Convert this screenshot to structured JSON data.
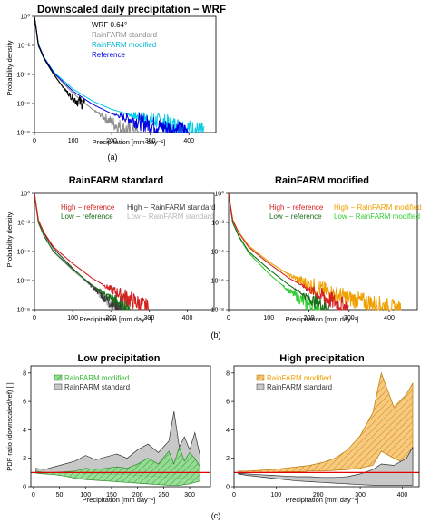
{
  "colors": {
    "wrf": "#000000",
    "standard": "#8c8c8c",
    "modified": "#00c8e6",
    "reference": "#0000e0",
    "high_ref": "#d42020",
    "low_ref": "#1a6e1a",
    "high_std": "#3a3a3a",
    "low_std": "#b8b8b8",
    "high_mod": "#f0a000",
    "low_mod": "#33cc33",
    "ratio_line": "#e00000",
    "low_fill": "#8ede8e",
    "high_fill": "#f8c470",
    "std_fill": "#c8c8c8"
  },
  "panel_a": {
    "title": "Downscaled daily precipitation − WRF",
    "xlabel": "Precipitation [mm day⁻¹]",
    "ylabel": "Probability density",
    "caption": "(a)",
    "legend": [
      "WRF 0.64°",
      "RainFARM standard",
      "RainFARM modified",
      "Reference"
    ]
  },
  "panel_b": {
    "caption": "(b)",
    "left": {
      "title": "RainFARM standard",
      "xlabel": "Precipitation [mm day⁻¹]",
      "ylabel": "Probability density",
      "legend": [
        "High − reference",
        "Low − reference",
        "High − RainFARM standard",
        "Low − RainFARM standard"
      ]
    },
    "right": {
      "title": "RainFARM modified",
      "xlabel": "Precipitation [mm day⁻¹]",
      "legend": [
        "High − reference",
        "Low − reference",
        "High − RainFARM modified",
        "Low − RainFARM modified"
      ]
    }
  },
  "panel_c": {
    "caption": "(c)",
    "left": {
      "title": "Low precipitation",
      "xlabel": "Precipitation [mm day⁻¹]",
      "ylabel": "PDF ratio (downscaled/ref) [ ]",
      "legend": [
        "RainFARM modified",
        "RainFARM standard"
      ]
    },
    "right": {
      "title": "High precipitation",
      "xlabel": "Precipitation [mm day⁻¹]",
      "legend": [
        "RainFARM modified",
        "RainFARM standard"
      ]
    }
  },
  "chart_data": [
    {
      "type": "line",
      "title": "Downscaled daily precipitation − WRF",
      "xlabel": "Precipitation [mm day⁻¹]",
      "ylabel": "Probability density",
      "y_scale": "log",
      "xlim": [
        0,
        470
      ],
      "ylim": [
        1e-08,
        1
      ],
      "x_ticks": [
        0,
        100,
        200,
        300,
        400
      ],
      "y_ticks": [
        "10⁰",
        "10⁻²",
        "10⁻⁴",
        "10⁻⁶",
        "10⁻⁸"
      ],
      "legend_position": "top-left",
      "series": [
        {
          "name": "WRF 0.64°",
          "x": [
            0,
            10,
            25,
            50,
            75,
            95,
            110,
            120,
            130
          ],
          "y": [
            1.0,
            0.01,
            0.0012,
            0.0001,
            1.2e-05,
            3e-06,
            1.5e-06,
            1.2e-06,
            1e-06
          ]
        },
        {
          "name": "RainFARM standard",
          "x": [
            0,
            10,
            25,
            50,
            100,
            150,
            200,
            225,
            250,
            270
          ],
          "y": [
            1.0,
            0.012,
            0.0013,
            0.00012,
            5e-06,
            4e-07,
            5e-08,
            2e-08,
            1.2e-08,
            1e-08
          ]
        },
        {
          "name": "RainFARM modified",
          "x": [
            0,
            10,
            25,
            50,
            100,
            150,
            200,
            250,
            300,
            350,
            400,
            440
          ],
          "y": [
            1.0,
            0.013,
            0.0015,
            0.00015,
            1e-05,
            1.5e-06,
            4e-07,
            1.6e-07,
            8e-08,
            4e-08,
            2e-08,
            1.2e-08
          ]
        },
        {
          "name": "Reference",
          "x": [
            0,
            10,
            25,
            50,
            100,
            150,
            200,
            250,
            300,
            350,
            400
          ],
          "y": [
            1.0,
            0.012,
            0.0014,
            0.00013,
            7e-06,
            9e-07,
            2e-07,
            8e-08,
            3.5e-08,
            2e-08,
            1.2e-08
          ]
        }
      ]
    },
    {
      "type": "line",
      "title": "RainFARM standard",
      "xlabel": "Precipitation [mm day⁻¹]",
      "ylabel": "Probability density",
      "y_scale": "log",
      "xlim": [
        0,
        470
      ],
      "ylim": [
        1e-08,
        1
      ],
      "x_ticks": [
        0,
        100,
        200,
        300,
        400
      ],
      "y_ticks": [
        "10⁰",
        "10⁻²",
        "10⁻⁴",
        "10⁻⁶",
        "10⁻⁸"
      ],
      "legend_position": "top",
      "series": [
        {
          "name": "High − reference",
          "x": [
            0,
            10,
            25,
            50,
            100,
            150,
            200,
            250,
            300
          ],
          "y": [
            1.0,
            0.015,
            0.002,
            0.0002,
            1.5e-05,
            1.5e-06,
            2.5e-07,
            5e-08,
            1.2e-08
          ]
        },
        {
          "name": "Low − reference",
          "x": [
            0,
            10,
            25,
            50,
            100,
            150,
            200,
            250
          ],
          "y": [
            1.0,
            0.01,
            0.0012,
            0.0001,
            6e-06,
            5e-07,
            6e-08,
            1.2e-08
          ]
        },
        {
          "name": "High − RainFARM standard",
          "x": [
            0,
            10,
            25,
            50,
            100,
            150,
            200,
            230
          ],
          "y": [
            1.0,
            0.014,
            0.0017,
            0.00016,
            7e-06,
            4e-07,
            3e-08,
            1e-08
          ]
        },
        {
          "name": "Low − RainFARM standard",
          "x": [
            0,
            10,
            25,
            50,
            100,
            150,
            200,
            230
          ],
          "y": [
            1.0,
            0.01,
            0.0011,
            9e-05,
            5e-06,
            4e-07,
            3e-08,
            1e-08
          ]
        }
      ]
    },
    {
      "type": "line",
      "title": "RainFARM modified",
      "xlabel": "Precipitation [mm day⁻¹]",
      "y_scale": "log",
      "xlim": [
        0,
        470
      ],
      "ylim": [
        1e-08,
        1
      ],
      "x_ticks": [
        0,
        100,
        200,
        300,
        400
      ],
      "y_ticks": [
        "10⁰",
        "10⁻²",
        "10⁻⁴",
        "10⁻⁶",
        "10⁻⁸"
      ],
      "legend_position": "top",
      "series": [
        {
          "name": "High − reference",
          "x": [
            0,
            10,
            25,
            50,
            100,
            150,
            200,
            250,
            300
          ],
          "y": [
            1.0,
            0.015,
            0.002,
            0.0002,
            1.5e-05,
            1.5e-06,
            2.5e-07,
            5e-08,
            1.2e-08
          ]
        },
        {
          "name": "Low − reference",
          "x": [
            0,
            10,
            25,
            50,
            100,
            150,
            200,
            250
          ],
          "y": [
            1.0,
            0.01,
            0.0012,
            0.0001,
            6e-06,
            5e-07,
            6e-08,
            1.2e-08
          ]
        },
        {
          "name": "High − RainFARM modified",
          "x": [
            0,
            10,
            25,
            50,
            100,
            150,
            200,
            250,
            300,
            350,
            400,
            430
          ],
          "y": [
            1.0,
            0.016,
            0.0022,
            0.00025,
            2e-05,
            2.5e-06,
            5e-07,
            1.5e-07,
            6e-08,
            3e-08,
            1.5e-08,
            1e-08
          ]
        },
        {
          "name": "Low − RainFARM modified",
          "x": [
            0,
            10,
            25,
            50,
            100,
            150,
            200,
            230
          ],
          "y": [
            1.0,
            0.011,
            0.0011,
            8e-05,
            3e-06,
            2e-07,
            2e-08,
            1e-08
          ]
        }
      ]
    },
    {
      "type": "area",
      "title": "Low precipitation",
      "xlabel": "Precipitation [mm day⁻¹]",
      "ylabel": "PDF ratio (downscaled/ref) [ ]",
      "xlim": [
        -5,
        340
      ],
      "ylim": [
        0,
        8.5
      ],
      "x_ticks": [
        0,
        50,
        100,
        150,
        200,
        250,
        300
      ],
      "y_ticks": [
        0,
        2,
        4,
        6,
        8
      ],
      "reference_line": 1,
      "legend_position": "top-left",
      "x": [
        5,
        20,
        40,
        60,
        80,
        100,
        120,
        140,
        160,
        180,
        200,
        220,
        240,
        260,
        270,
        280,
        290,
        300,
        310,
        320
      ],
      "series": [
        {
          "name": "RainFARM modified",
          "lower": [
            0.95,
            0.9,
            0.85,
            0.75,
            0.6,
            0.5,
            0.45,
            0.4,
            0.35,
            0.3,
            0.25,
            0.2,
            0.15,
            0.1,
            0.1,
            0.1,
            0.15,
            0.2,
            0.3,
            0.4
          ],
          "upper": [
            1.1,
            1.0,
            1.0,
            1.05,
            1.1,
            1.3,
            1.2,
            1.3,
            1.4,
            1.3,
            1.6,
            2.0,
            1.6,
            2.5,
            1.6,
            2.8,
            1.8,
            2.4,
            2.0,
            1.4
          ]
        },
        {
          "name": "RainFARM standard",
          "lower": [
            0.95,
            0.95,
            1.0,
            1.0,
            1.0,
            0.95,
            0.95,
            0.9,
            0.85,
            0.85,
            0.8,
            0.75,
            0.7,
            0.65,
            0.6,
            0.6,
            0.55,
            0.5,
            0.5,
            0.5
          ],
          "upper": [
            1.3,
            1.2,
            1.4,
            1.6,
            1.8,
            2.2,
            1.9,
            2.1,
            2.3,
            2.0,
            2.6,
            3.0,
            2.4,
            3.2,
            5.3,
            2.8,
            3.5,
            2.6,
            3.8,
            2.2
          ]
        }
      ]
    },
    {
      "type": "area",
      "title": "High precipitation",
      "xlabel": "Precipitation [mm day⁻¹]",
      "xlim": [
        0,
        440
      ],
      "ylim": [
        0,
        8.5
      ],
      "x_ticks": [
        0,
        100,
        200,
        300,
        400
      ],
      "y_ticks": [
        0,
        2,
        4,
        6,
        8
      ],
      "reference_line": 1,
      "legend_position": "top-left",
      "x": [
        10,
        30,
        60,
        90,
        120,
        150,
        180,
        210,
        240,
        270,
        300,
        330,
        350,
        380,
        410,
        425
      ],
      "series": [
        {
          "name": "RainFARM modified",
          "lower": [
            1.0,
            1.0,
            1.0,
            1.0,
            1.05,
            1.05,
            1.1,
            1.1,
            1.15,
            1.2,
            1.3,
            1.5,
            2.5,
            2.0,
            1.6,
            1.2
          ],
          "upper": [
            1.1,
            1.1,
            1.15,
            1.2,
            1.3,
            1.4,
            1.5,
            1.7,
            2.0,
            2.6,
            3.6,
            5.2,
            8.0,
            5.6,
            6.5,
            7.3
          ]
        },
        {
          "name": "RainFARM standard",
          "lower": [
            0.9,
            0.8,
            0.7,
            0.6,
            0.5,
            0.4,
            0.35,
            0.3,
            0.25,
            0.2,
            0.15,
            0.1,
            0.1,
            0.1,
            0.1,
            0.1
          ],
          "upper": [
            0.95,
            0.9,
            0.85,
            0.8,
            0.75,
            0.7,
            0.7,
            0.65,
            0.65,
            0.7,
            0.9,
            1.2,
            1.6,
            1.5,
            2.0,
            2.8
          ]
        }
      ]
    }
  ]
}
